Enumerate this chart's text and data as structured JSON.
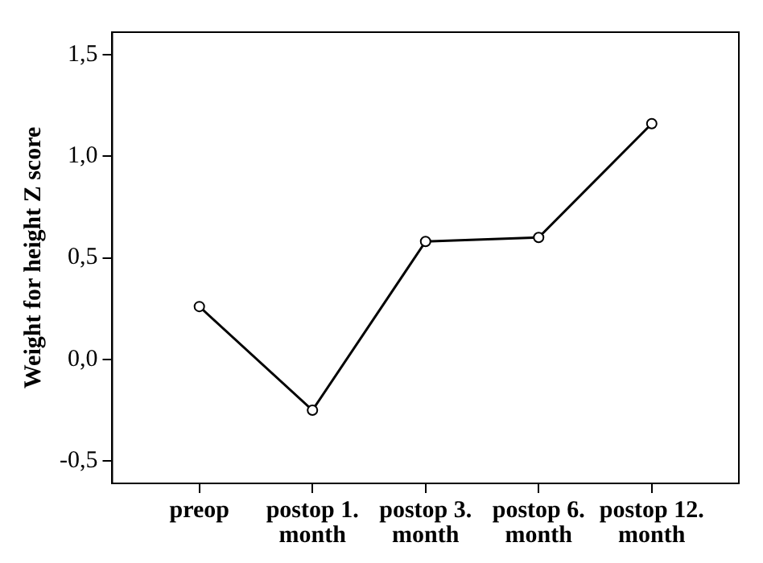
{
  "chart_data": {
    "type": "line",
    "ylabel": "Weight for height Z score",
    "categories": [
      "preop",
      "postop 1. month",
      "postop 3. month",
      "postop 6. month",
      "postop 12. month"
    ],
    "series": [
      {
        "color": "#000000",
        "values": [
          0.26,
          -0.25,
          0.58,
          0.6,
          1.16
        ]
      }
    ],
    "ylim": [
      -0.61,
      1.61
    ],
    "yticks": [
      {
        "value": -0.5,
        "label": "-0,5"
      },
      {
        "value": 0,
        "label": "0,0"
      },
      {
        "value": 0.5,
        "label": "0,5"
      },
      {
        "value": 1,
        "label": "1,0"
      },
      {
        "value": 1.5,
        "label": "1,5"
      }
    ],
    "grid": false,
    "legend": false,
    "marker": "circle",
    "line_style": "solid"
  }
}
